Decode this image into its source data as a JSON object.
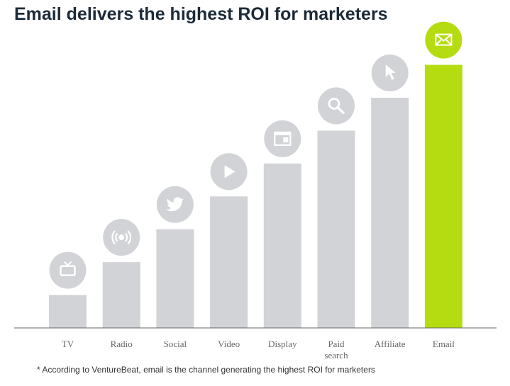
{
  "title": "Email delivers the highest ROI for marketers",
  "footnote": "* According to VentureBeat, email is the channel generating the highest ROI for marketers",
  "colors": {
    "bar_default": "#d1d3d6",
    "bar_highlight": "#b5dc10",
    "icon_glyph": "#ffffff",
    "axis": "#666666"
  },
  "chart_data": {
    "type": "bar",
    "title": "Email delivers the highest ROI for marketers",
    "categories": [
      {
        "label": "TV",
        "icon": "tv-icon"
      },
      {
        "label": "Radio",
        "icon": "radio-broadcast-icon"
      },
      {
        "label": "Social",
        "icon": "twitter-bird-icon"
      },
      {
        "label": "Video",
        "icon": "play-icon"
      },
      {
        "label": "Display",
        "icon": "browser-window-icon"
      },
      {
        "label": "Paid search",
        "icon": "search-icon"
      },
      {
        "label": "Affiliate",
        "icon": "cursor-arrow-icon"
      },
      {
        "label": "Email",
        "icon": "envelope-icon"
      }
    ],
    "values": [
      1,
      2,
      3,
      4,
      5,
      6,
      7,
      8
    ],
    "highlight": "Email",
    "ylim": [
      0,
      8.4
    ],
    "grid": false,
    "xlabel": "",
    "ylabel": ""
  }
}
